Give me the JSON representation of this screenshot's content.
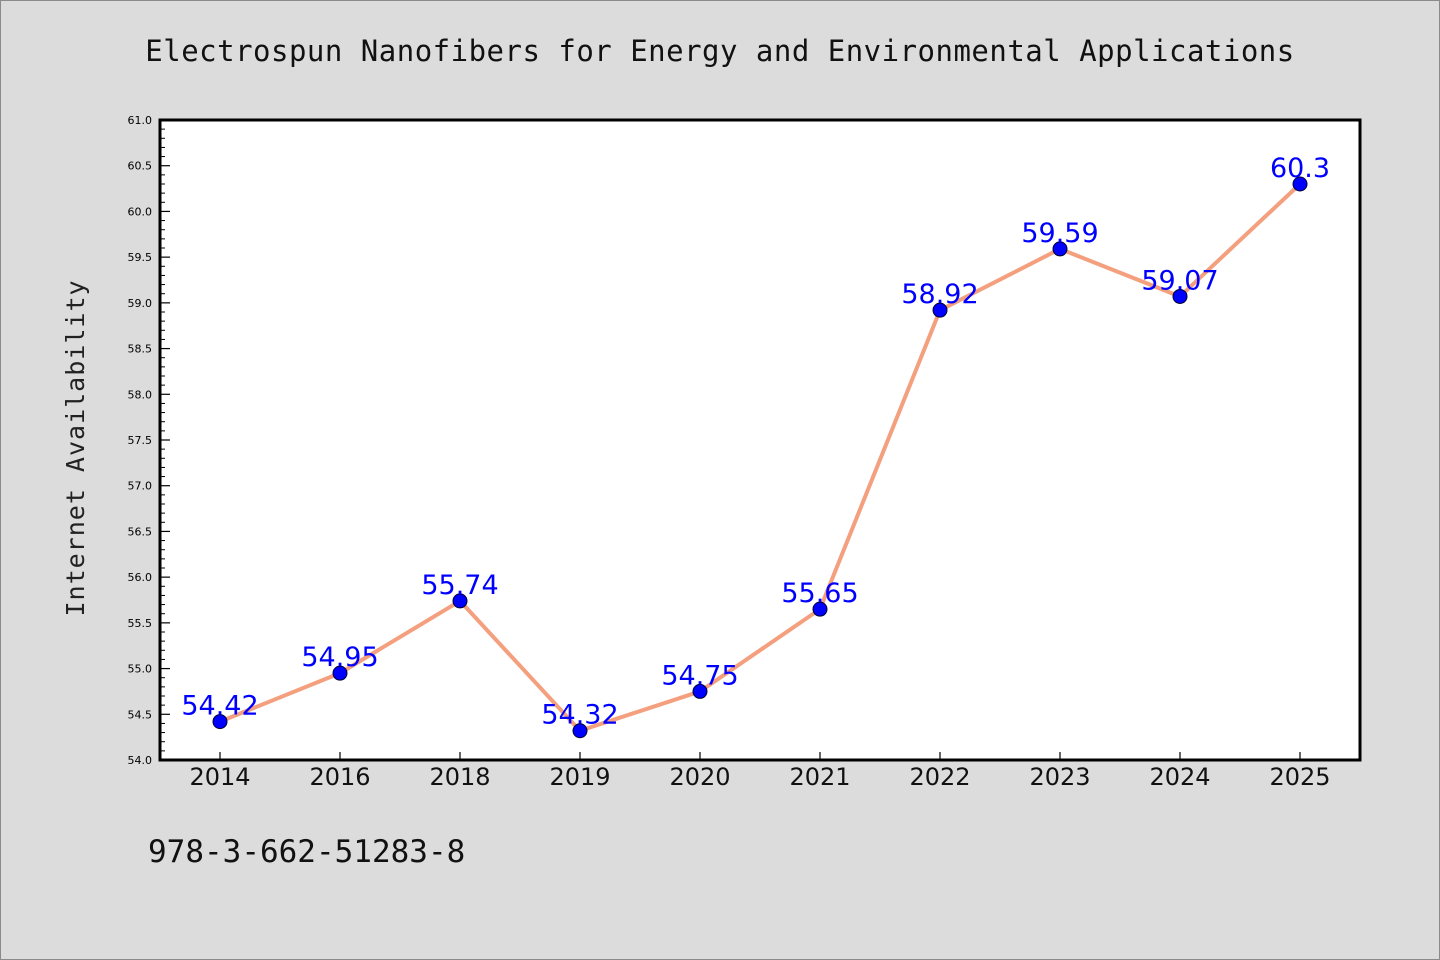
{
  "page": {
    "background": "#dcdcdc",
    "footer_code": "978-3-662-51283-8"
  },
  "chart_data": {
    "type": "line",
    "title": "Electrospun Nanofibers for Energy and Environmental Applications",
    "xlabel": "",
    "ylabel": "Internet Availability",
    "categories": [
      "2014",
      "2016",
      "2018",
      "2019",
      "2020",
      "2021",
      "2022",
      "2023",
      "2024",
      "2025"
    ],
    "series": [
      {
        "values": [
          54.42,
          54.95,
          55.74,
          54.32,
          54.75,
          55.65,
          58.92,
          59.59,
          59.07,
          60.3
        ],
        "data_labels": [
          "54.42",
          "54.95",
          "55.74",
          "54.32",
          "54.75",
          "55.65",
          "58.92",
          "59.59",
          "59.07",
          "60.3"
        ],
        "line_color": "#f4a07f",
        "marker_color": "#0000ff"
      }
    ],
    "ylim": [
      54.0,
      61.0
    ],
    "yticks": [
      "54.0",
      "54.5",
      "55.0",
      "55.5",
      "56.0",
      "56.5",
      "57.0",
      "57.5",
      "58.0",
      "58.5",
      "59.0",
      "59.5",
      "60.0",
      "60.5",
      "61.0"
    ],
    "grid": false,
    "legend": "none"
  }
}
